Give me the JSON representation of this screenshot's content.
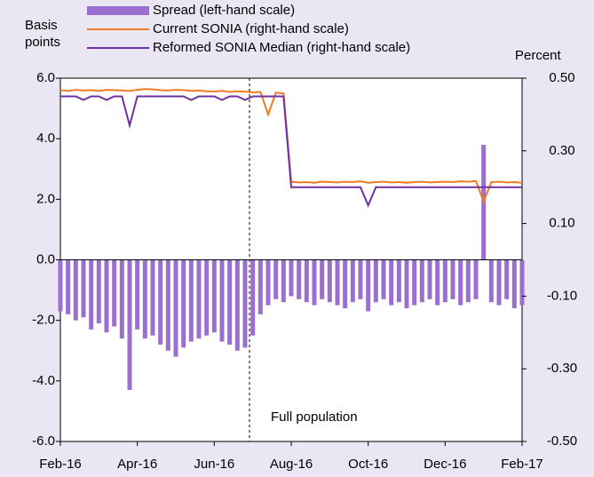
{
  "chart_data": {
    "type": "bar",
    "y_label": "Basis points",
    "y2_label": "Percent",
    "annotation": "Full population",
    "categories": [
      "Feb-16",
      null,
      null,
      null,
      null,
      null,
      null,
      null,
      null,
      null,
      "Apr-16",
      null,
      null,
      null,
      null,
      null,
      null,
      null,
      null,
      null,
      "Jun-16",
      null,
      null,
      null,
      null,
      null,
      null,
      null,
      null,
      null,
      "Aug-16",
      null,
      null,
      null,
      null,
      null,
      null,
      null,
      null,
      null,
      "Oct-16",
      null,
      null,
      null,
      null,
      null,
      null,
      null,
      null,
      null,
      "Dec-16",
      null,
      null,
      null,
      null,
      null,
      null,
      null,
      null,
      null,
      "Feb-17"
    ],
    "ylim": [
      -6,
      6
    ],
    "yticks": [
      {
        "value": -6,
        "label": "-6.0"
      },
      {
        "value": -4,
        "label": "-4.0"
      },
      {
        "value": -2,
        "label": "-2.0"
      },
      {
        "value": 0,
        "label": "0.0"
      },
      {
        "value": 2,
        "label": "2.0"
      },
      {
        "value": 4,
        "label": "4.0"
      },
      {
        "value": 6,
        "label": "6.0"
      }
    ],
    "y2lim": [
      -0.5,
      0.5
    ],
    "y2ticks": [
      {
        "value": -0.5,
        "label": "-0.50"
      },
      {
        "value": -0.3,
        "label": "-0.30"
      },
      {
        "value": -0.1,
        "label": "-0.10"
      },
      {
        "value": 0.1,
        "label": "0.10"
      },
      {
        "value": 0.3,
        "label": "0.30"
      },
      {
        "value": 0.5,
        "label": "0.50"
      }
    ],
    "series": [
      {
        "name": "Spread (left-hand scale)",
        "color": "#9b6fd0",
        "kind": "bar",
        "values": [
          -1.7,
          -1.8,
          -2.0,
          -1.9,
          -2.3,
          -2.1,
          -2.4,
          -2.2,
          -2.6,
          -4.3,
          -2.3,
          -2.6,
          -2.5,
          -2.8,
          -3.0,
          -3.2,
          -2.9,
          -2.7,
          -2.6,
          -2.5,
          -2.4,
          -2.7,
          -2.8,
          -3.0,
          -2.9,
          -2.5,
          -1.8,
          -1.5,
          -1.3,
          -1.4,
          -1.2,
          -1.3,
          -1.4,
          -1.5,
          -1.3,
          -1.4,
          -1.5,
          -1.6,
          -1.4,
          -1.3,
          -1.7,
          -1.4,
          -1.3,
          -1.5,
          -1.4,
          -1.6,
          -1.5,
          -1.4,
          -1.3,
          -1.5,
          -1.4,
          -1.3,
          -1.5,
          -1.4,
          -1.3,
          3.8,
          -1.4,
          -1.5,
          -1.3,
          -1.6,
          -1.5
        ]
      },
      {
        "name": "Current SONIA (right-hand scale)",
        "color": "#f07b22",
        "kind": "line",
        "axis": "y2",
        "values": [
          0.467,
          0.465,
          0.468,
          0.466,
          0.467,
          0.465,
          0.468,
          0.467,
          0.466,
          0.465,
          0.468,
          0.47,
          0.469,
          0.467,
          0.466,
          0.468,
          0.467,
          0.465,
          0.466,
          0.464,
          0.463,
          0.465,
          0.462,
          0.464,
          0.463,
          0.461,
          0.462,
          0.4,
          0.46,
          0.458,
          0.215,
          0.213,
          0.214,
          0.212,
          0.215,
          0.214,
          0.213,
          0.215,
          0.214,
          0.216,
          0.212,
          0.214,
          0.215,
          0.213,
          0.214,
          0.212,
          0.214,
          0.215,
          0.213,
          0.214,
          0.215,
          0.214,
          0.216,
          0.215,
          0.217,
          0.16,
          0.214,
          0.215,
          0.213,
          0.214,
          0.212
        ]
      },
      {
        "name": "Reformed SONIA Median (right-hand scale)",
        "color": "#7030a0",
        "kind": "line",
        "axis": "y2",
        "values": [
          0.45,
          0.45,
          0.45,
          0.44,
          0.45,
          0.45,
          0.44,
          0.45,
          0.45,
          0.37,
          0.45,
          0.45,
          0.45,
          0.45,
          0.45,
          0.45,
          0.45,
          0.44,
          0.45,
          0.45,
          0.45,
          0.44,
          0.45,
          0.45,
          0.44,
          0.45,
          0.45,
          0.45,
          0.45,
          0.45,
          0.2,
          0.2,
          0.2,
          0.2,
          0.2,
          0.2,
          0.2,
          0.2,
          0.2,
          0.2,
          0.15,
          0.2,
          0.2,
          0.2,
          0.2,
          0.2,
          0.2,
          0.2,
          0.2,
          0.2,
          0.2,
          0.2,
          0.2,
          0.2,
          0.2,
          0.2,
          0.2,
          0.2,
          0.2,
          0.2,
          0.2
        ]
      }
    ]
  }
}
